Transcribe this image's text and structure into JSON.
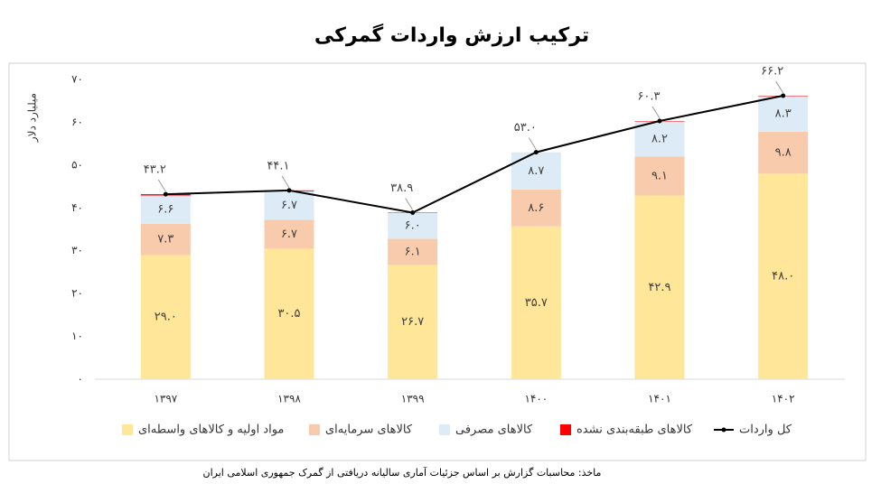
{
  "chart_data": {
    "type": "bar",
    "stacked": true,
    "title": "ترکیب ارزش واردات گمرکی",
    "y_label": "میلیارد دلار",
    "source": "ماخذ: محاسبات گزارش بر اساس جزئیات آماری سالیانه دریافتی از گمرک جمهوری اسلامی ایران",
    "categories": [
      "۱۳۹۷",
      "۱۳۹۸",
      "۱۳۹۹",
      "۱۴۰۰",
      "۱۴۰۱",
      "۱۴۰۲"
    ],
    "ylim": [
      0,
      70
    ],
    "yticks": [
      {
        "value": 0,
        "label": "۰"
      },
      {
        "value": 10,
        "label": "۱۰"
      },
      {
        "value": 20,
        "label": "۲۰"
      },
      {
        "value": 30,
        "label": "۳۰"
      },
      {
        "value": 40,
        "label": "۴۰"
      },
      {
        "value": 50,
        "label": "۵۰"
      },
      {
        "value": 60,
        "label": "۶۰"
      },
      {
        "value": 70,
        "label": "۷۰"
      }
    ],
    "series": [
      {
        "name": "مواد اولیه و کالاهای واسطه‌ای",
        "type": "bar",
        "color": "#FFE699",
        "values": [
          29.0,
          30.5,
          26.7,
          35.7,
          42.9,
          48.0
        ],
        "value_labels": [
          "۲۹.۰",
          "۳۰.۵",
          "۲۶.۷",
          "۳۵.۷",
          "۴۲.۹",
          "۴۸.۰"
        ]
      },
      {
        "name": "کالاهای سرمایه‌ای",
        "type": "bar",
        "color": "#F8CBAD",
        "values": [
          7.3,
          6.7,
          6.1,
          8.6,
          9.1,
          9.8
        ],
        "value_labels": [
          "۷.۳",
          "۶.۷",
          "۶.۱",
          "۸.۶",
          "۹.۱",
          "۹.۸"
        ]
      },
      {
        "name": "کالاهای مصرفی",
        "type": "bar",
        "color": "#DDEBF7",
        "values": [
          6.6,
          6.7,
          6.0,
          8.7,
          8.2,
          8.3
        ],
        "value_labels": [
          "۶.۶",
          "۶.۷",
          "۶.۰",
          "۸.۷",
          "۸.۲",
          "۸.۳"
        ]
      },
      {
        "name": "کالاهای طبقه‌بندی نشده",
        "type": "bar",
        "color": "#FF0000",
        "values": [
          0.3,
          0.2,
          0.1,
          0.0,
          0.1,
          0.1
        ]
      },
      {
        "name": "کل واردات",
        "type": "line",
        "color": "#000000",
        "values": [
          43.2,
          44.1,
          38.9,
          53.0,
          60.3,
          66.2
        ],
        "value_labels": [
          "۴۳.۲",
          "۴۴.۱",
          "۳۸.۹",
          "۵۳.۰",
          "۶۰.۳",
          "۶۶.۲"
        ]
      }
    ]
  }
}
